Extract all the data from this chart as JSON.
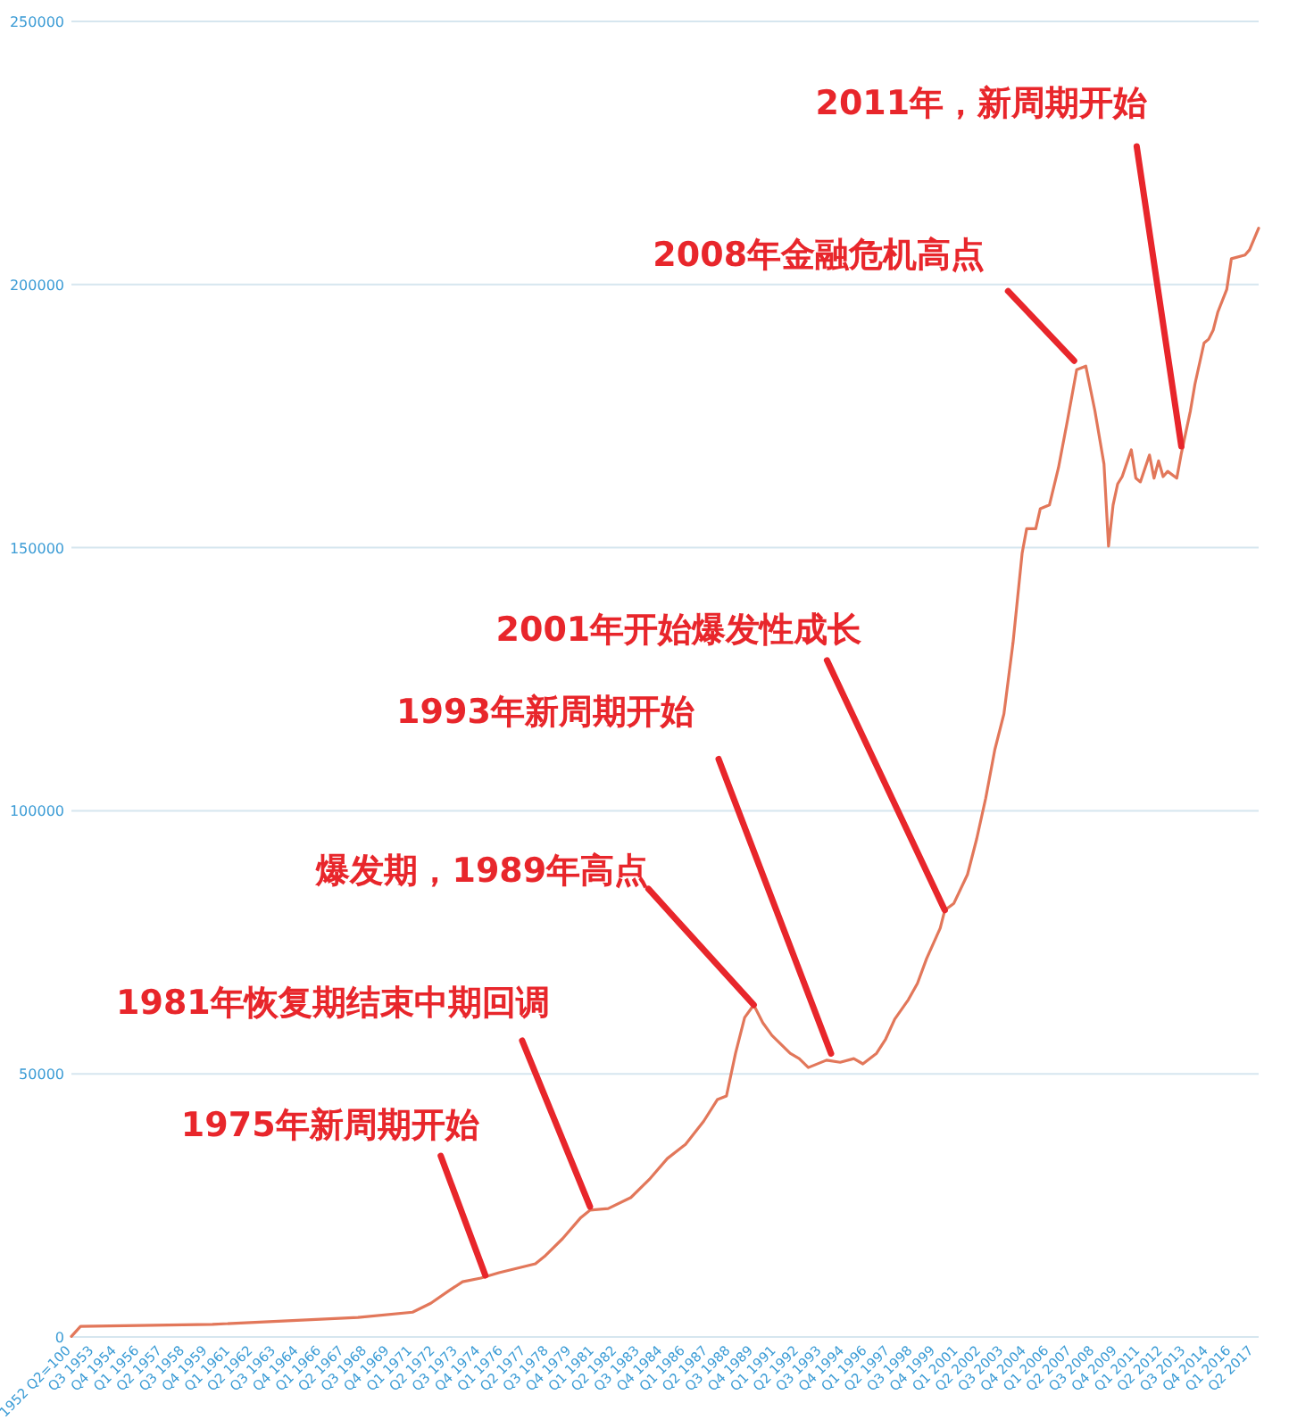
{
  "chart_data": {
    "type": "line",
    "xlim": [
      "1952-04",
      "2017-07"
    ],
    "ylim": [
      0,
      250000
    ],
    "yticks": [
      0,
      50000,
      100000,
      150000,
      200000,
      250000
    ],
    "grid": "y",
    "marker": "none",
    "line_style": "solid",
    "xticks": [
      {
        "value": "1952-04",
        "label": "1952 Q2=100"
      },
      {
        "value": "1953-07",
        "label": "Q3 1953"
      },
      {
        "value": "1954-10",
        "label": "Q4 1954"
      },
      {
        "value": "1956-01",
        "label": "Q1 1956"
      },
      {
        "value": "1957-04",
        "label": "Q2 1957"
      },
      {
        "value": "1958-07",
        "label": "Q3 1958"
      },
      {
        "value": "1959-10",
        "label": "Q4 1959"
      },
      {
        "value": "1961-01",
        "label": "Q1 1961"
      },
      {
        "value": "1962-04",
        "label": "Q2 1962"
      },
      {
        "value": "1963-07",
        "label": "Q3 1963"
      },
      {
        "value": "1964-10",
        "label": "Q4 1964"
      },
      {
        "value": "1966-01",
        "label": "Q1 1966"
      },
      {
        "value": "1967-04",
        "label": "Q2 1967"
      },
      {
        "value": "1968-07",
        "label": "Q3 1968"
      },
      {
        "value": "1969-10",
        "label": "Q4 1969"
      },
      {
        "value": "1971-01",
        "label": "Q1 1971"
      },
      {
        "value": "1972-04",
        "label": "Q2 1972"
      },
      {
        "value": "1973-07",
        "label": "Q3 1973"
      },
      {
        "value": "1974-10",
        "label": "Q4 1974"
      },
      {
        "value": "1976-01",
        "label": "Q1 1976"
      },
      {
        "value": "1977-04",
        "label": "Q2 1977"
      },
      {
        "value": "1978-07",
        "label": "Q3 1978"
      },
      {
        "value": "1979-10",
        "label": "Q4 1979"
      },
      {
        "value": "1981-01",
        "label": "Q1 1981"
      },
      {
        "value": "1982-04",
        "label": "Q2 1982"
      },
      {
        "value": "1983-07",
        "label": "Q3 1983"
      },
      {
        "value": "1984-10",
        "label": "Q4 1984"
      },
      {
        "value": "1986-01",
        "label": "Q1 1986"
      },
      {
        "value": "1987-04",
        "label": "Q2 1987"
      },
      {
        "value": "1988-07",
        "label": "Q3 1988"
      },
      {
        "value": "1989-10",
        "label": "Q4 1989"
      },
      {
        "value": "1991-01",
        "label": "Q1 1991"
      },
      {
        "value": "1992-04",
        "label": "Q2 1992"
      },
      {
        "value": "1993-07",
        "label": "Q3 1993"
      },
      {
        "value": "1994-10",
        "label": "Q4 1994"
      },
      {
        "value": "1996-01",
        "label": "Q1 1996"
      },
      {
        "value": "1997-04",
        "label": "Q2 1997"
      },
      {
        "value": "1998-07",
        "label": "Q3 1998"
      },
      {
        "value": "1999-10",
        "label": "Q4 1999"
      },
      {
        "value": "2001-01",
        "label": "Q1 2001"
      },
      {
        "value": "2002-04",
        "label": "Q2 2002"
      },
      {
        "value": "2003-07",
        "label": "Q3 2003"
      },
      {
        "value": "2004-10",
        "label": "Q4 2004"
      },
      {
        "value": "2006-01",
        "label": "Q1 2006"
      },
      {
        "value": "2007-04",
        "label": "Q2 2007"
      },
      {
        "value": "2008-07",
        "label": "Q3 2008"
      },
      {
        "value": "2009-10",
        "label": "Q4 2009"
      },
      {
        "value": "2011-01",
        "label": "Q1 2011"
      },
      {
        "value": "2012-04",
        "label": "Q2 2012"
      },
      {
        "value": "2013-07",
        "label": "Q3 2013"
      },
      {
        "value": "2014-10",
        "label": "Q4 2014"
      },
      {
        "value": "2016-01",
        "label": "Q1 2016"
      },
      {
        "value": "2017-04",
        "label": "Q2 2017"
      }
    ],
    "series": [
      {
        "color": "#e2775a",
        "x": [
          "1952-04",
          "1952-10",
          "1960-01",
          "1968-01",
          "1971-01",
          "1972-01",
          "1973-01",
          "1973-10",
          "1974-10",
          "1975-10",
          "1977-10",
          "1978-04",
          "1979-04",
          "1980-04",
          "1980-10",
          "1981-10",
          "1983-01",
          "1984-01",
          "1985-01",
          "1986-01",
          "1987-01",
          "1987-10",
          "1988-04",
          "1988-10",
          "1989-04",
          "1989-10",
          "1990-04",
          "1990-10",
          "1991-04",
          "1991-10",
          "1992-04",
          "1992-10",
          "1993-10",
          "1994-07",
          "1995-04",
          "1995-10",
          "1996-07",
          "1997-01",
          "1997-07",
          "1998-04",
          "1998-10",
          "1999-04",
          "2000-01",
          "2000-04",
          "2000-10",
          "2001-07",
          "2002-01",
          "2002-07",
          "2003-01",
          "2003-07",
          "2004-01",
          "2004-07",
          "2004-10",
          "2005-04",
          "2005-07",
          "2006-01",
          "2006-07",
          "2007-01",
          "2007-07",
          "2008-01",
          "2008-07",
          "2009-01",
          "2009-04",
          "2009-07",
          "2009-10",
          "2010-01",
          "2010-07",
          "2010-10",
          "2011-01",
          "2011-07",
          "2011-10",
          "2012-01",
          "2012-04",
          "2012-07",
          "2013-01",
          "2013-04",
          "2013-10",
          "2014-01",
          "2014-07",
          "2014-10",
          "2015-01",
          "2015-04",
          "2015-10",
          "2016-01",
          "2016-10",
          "2017-01",
          "2017-07"
        ],
        "values": [
          100,
          2000,
          2400,
          3700,
          4700,
          6400,
          8800,
          10500,
          11200,
          12200,
          13900,
          15300,
          18700,
          22700,
          24100,
          24400,
          26500,
          29900,
          33900,
          36600,
          41000,
          45100,
          45800,
          53900,
          60700,
          63100,
          59700,
          57300,
          55600,
          53900,
          52900,
          51200,
          52600,
          52200,
          52900,
          51900,
          53900,
          56600,
          60400,
          64100,
          67200,
          71900,
          77700,
          81100,
          82400,
          87900,
          94600,
          102400,
          111600,
          118400,
          131900,
          148900,
          153600,
          153600,
          157400,
          158100,
          165200,
          174300,
          183800,
          184500,
          176000,
          165900,
          150300,
          158100,
          162100,
          163500,
          168600,
          163200,
          162500,
          167600,
          163200,
          166500,
          163500,
          164500,
          163200,
          167900,
          176000,
          181100,
          188900,
          189600,
          191300,
          194700,
          199100,
          204900,
          205600,
          206600,
          210700
        ]
      }
    ],
    "annotations": [
      {
        "text": "1975年新周期开始",
        "x": "1975-01",
        "y": 11700
      },
      {
        "text": "1981年恢复期结束中期回调",
        "x": "1980-10",
        "y": 24100
      },
      {
        "text": "爆发期，1989年高点",
        "x": "1989-10",
        "y": 63100
      },
      {
        "text": "1993年新周期开始",
        "x": "1994-01",
        "y": 52500
      },
      {
        "text": "2001年开始爆发性成长",
        "x": "2000-04",
        "y": 81100
      },
      {
        "text": "2008年金融危机高点",
        "x": "2007-10",
        "y": 184500
      },
      {
        "text": "2011年，新周期开始",
        "x": "2013-04",
        "y": 167900
      }
    ]
  }
}
